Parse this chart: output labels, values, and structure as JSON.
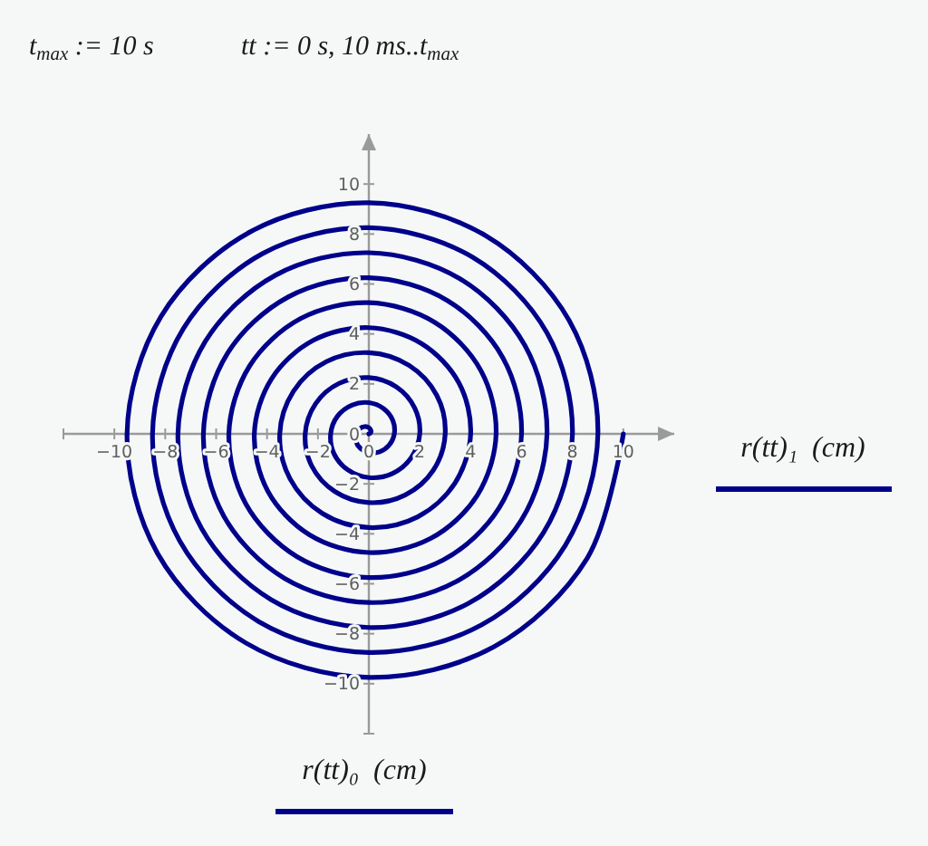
{
  "chart_data": {
    "type": "line",
    "annotations": [
      "t$_{max}$ := 10 s",
      "tt := 0 s, 10 ms..t$_{max}$"
    ],
    "xlabel": "r(tt)₀  (cm)",
    "ylabel": "r(tt)₁  (cm)",
    "xlim": [
      -12,
      12
    ],
    "ylim": [
      -12,
      12
    ],
    "xticks": [
      -10,
      -8,
      -6,
      -4,
      -2,
      0,
      2,
      4,
      6,
      8,
      10
    ],
    "yticks": [
      -10,
      -8,
      -6,
      -4,
      -2,
      0,
      2,
      4,
      6,
      8,
      10
    ],
    "x": [
      0,
      0.07,
      0.08,
      0,
      -0.17,
      -0.36,
      -0.5,
      -0.51,
      -0.33,
      0,
      0.42,
      0.79,
      1,
      0.94,
      0.58,
      0,
      -0.67,
      -1.23,
      -1.5,
      -1.37,
      -0.83,
      0,
      0.92,
      1.66,
      2,
      1.8,
      1.08,
      0,
      -1.17,
      -2.09,
      -2.5,
      -2.24,
      -1.33,
      0,
      1.42,
      2.53,
      3,
      2.67,
      1.58,
      0,
      -1.67,
      -2.96,
      -3.5,
      -3.1,
      -1.83,
      0,
      1.92,
      3.39,
      4,
      3.54,
      2.08,
      0,
      -2.17,
      -3.82,
      -4.5,
      -3.97,
      -2.33,
      0,
      2.42,
      4.26,
      5,
      4.4,
      2.58,
      0,
      -2.67,
      -4.69,
      -5.5,
      -4.84,
      -2.83,
      0,
      2.92,
      5.12,
      6,
      5.27,
      3.08,
      0,
      -3.17,
      -5.56,
      -6.5,
      -5.7,
      -3.33,
      0,
      3.42,
      5.99,
      7,
      6.13,
      3.58,
      0,
      -3.67,
      -6.42,
      -7.5,
      -6.57,
      -3.83,
      0,
      3.92,
      6.86,
      8,
      7,
      4.08,
      0,
      -4.17,
      -7.29,
      -8.5,
      -7.43,
      -4.33,
      0,
      4.42,
      7.72,
      9,
      7.87,
      4.58,
      0,
      -4.67,
      -8.16,
      -9.5,
      -8.3,
      -4.83,
      0,
      4.92,
      8.59,
      10
    ],
    "series": [
      {
        "color": "#00008b",
        "values": [
          0,
          0.04,
          0.14,
          0.25,
          0.29,
          0.21,
          0,
          -0.29,
          -0.58,
          -0.75,
          -0.72,
          -0.46,
          0,
          0.54,
          1.01,
          1.25,
          1.15,
          0.71,
          0,
          -0.79,
          -1.44,
          -1.75,
          -1.59,
          -0.96,
          0,
          1.04,
          1.88,
          2.25,
          2.02,
          1.21,
          0,
          -1.29,
          -2.31,
          -2.75,
          -2.45,
          -1.46,
          0,
          1.54,
          2.74,
          3.25,
          2.89,
          1.71,
          0,
          -1.79,
          -3.18,
          -3.75,
          -3.32,
          -1.96,
          0,
          2.04,
          3.61,
          4.25,
          3.75,
          2.21,
          0,
          -2.29,
          -4.04,
          -4.75,
          -4.19,
          -2.46,
          0,
          2.54,
          4.47,
          5.25,
          4.62,
          2.71,
          0,
          -2.79,
          -4.91,
          -5.75,
          -5.05,
          -2.96,
          0,
          3.04,
          5.34,
          6.25,
          5.48,
          3.21,
          0,
          -3.29,
          -5.77,
          -6.75,
          -5.92,
          -3.46,
          0,
          3.54,
          6.21,
          7.25,
          6.35,
          3.71,
          0,
          -3.79,
          -6.64,
          -7.75,
          -6.78,
          -3.96,
          0,
          4.04,
          7.07,
          8.25,
          7.22,
          4.21,
          0,
          -4.29,
          -7.51,
          -8.75,
          -7.65,
          -4.46,
          0,
          4.54,
          7.94,
          9.25,
          8.08,
          4.71,
          0,
          -4.79,
          -8.37,
          -9.75,
          -8.52,
          -4.96,
          0
        ]
      }
    ]
  }
}
